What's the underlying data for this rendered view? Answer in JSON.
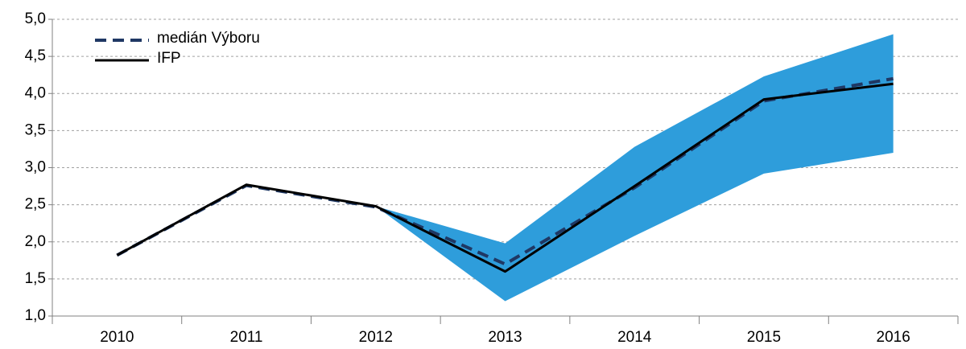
{
  "chart_data": {
    "type": "line",
    "categories": [
      "2010",
      "2011",
      "2012",
      "2013",
      "2014",
      "2015",
      "2016"
    ],
    "band": {
      "color": "#2e9ddb",
      "lower": [
        null,
        null,
        2.48,
        1.2,
        2.08,
        2.92,
        3.2
      ],
      "upper": [
        null,
        null,
        2.48,
        1.98,
        3.28,
        4.23,
        4.8
      ]
    },
    "series": [
      {
        "name": "medián Výboru",
        "color": "#1f3864",
        "dashed": true,
        "values": [
          1.82,
          2.76,
          2.47,
          1.7,
          2.73,
          3.9,
          4.2
        ]
      },
      {
        "name": "IFP",
        "color": "#000000",
        "dashed": false,
        "values": [
          1.82,
          2.77,
          2.48,
          1.6,
          2.75,
          3.92,
          4.13
        ]
      }
    ],
    "ylim": [
      1,
      5
    ],
    "yticks": [
      {
        "value": 1,
        "label": "1,0"
      },
      {
        "value": 1.5,
        "label": "1,5"
      },
      {
        "value": 2,
        "label": "2,0"
      },
      {
        "value": 2.5,
        "label": "2,5"
      },
      {
        "value": 3,
        "label": "3,0"
      },
      {
        "value": 3.5,
        "label": "3,5"
      },
      {
        "value": 4,
        "label": "4,0"
      },
      {
        "value": 4.5,
        "label": "4,5"
      },
      {
        "value": 5,
        "label": "5,0"
      }
    ],
    "grid": true,
    "legend": "top-left"
  }
}
